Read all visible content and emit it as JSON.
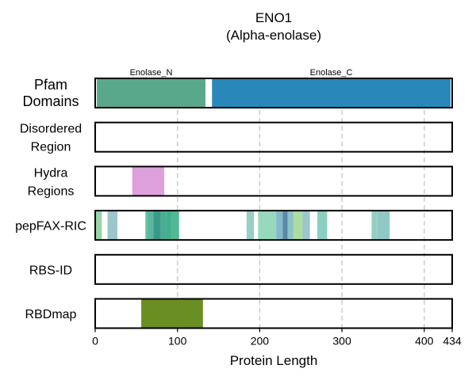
{
  "chart_data": {
    "type": "protein-track",
    "title": "ENO1",
    "subtitle": "(Alpha-enolase)",
    "xlabel": "Protein Length",
    "protein_length": 434,
    "xlim": [
      0,
      434
    ],
    "xticks": [
      0,
      100,
      200,
      300,
      400,
      434
    ],
    "grid_lines": [
      100,
      200,
      300,
      400
    ],
    "tracks": [
      {
        "label_lines": [
          "Pfam",
          "Domains"
        ],
        "features": [
          {
            "label": "Enolase_N",
            "start": 2,
            "end": 134,
            "color": "#5aa88c"
          },
          {
            "label": "Enolase_C",
            "start": 142,
            "end": 432,
            "color": "#2a87b9"
          }
        ]
      },
      {
        "label_lines": [
          "Disordered",
          "Region"
        ],
        "features": []
      },
      {
        "label_lines": [
          "Hydra",
          "Regions"
        ],
        "features": [
          {
            "start": 45,
            "end": 84,
            "color": "#dda0dd"
          }
        ]
      },
      {
        "label_lines": [
          "pepFAX-RIC"
        ],
        "features": [
          {
            "start": 0,
            "end": 8,
            "color": "#98d3aa"
          },
          {
            "start": 15,
            "end": 27,
            "color": "#9ac6cc"
          },
          {
            "start": 61,
            "end": 66,
            "color": "#66c2a5"
          },
          {
            "start": 64,
            "end": 72,
            "color": "#5bb79c"
          },
          {
            "start": 71,
            "end": 80,
            "color": "#3a9a8a"
          },
          {
            "start": 79,
            "end": 86,
            "color": "#4bab93"
          },
          {
            "start": 86,
            "end": 94,
            "color": "#3fb08e"
          },
          {
            "start": 92,
            "end": 102,
            "color": "#52b794"
          },
          {
            "start": 184,
            "end": 193,
            "color": "#98cfc4"
          },
          {
            "start": 198,
            "end": 220,
            "color": "#98d9bd"
          },
          {
            "start": 220,
            "end": 228,
            "color": "#84b9c8"
          },
          {
            "start": 228,
            "end": 234,
            "color": "#5889a8"
          },
          {
            "start": 234,
            "end": 241,
            "color": "#8cc1c6"
          },
          {
            "start": 241,
            "end": 252,
            "color": "#acdca2"
          },
          {
            "start": 252,
            "end": 261,
            "color": "#9ac6cc"
          },
          {
            "start": 270,
            "end": 282,
            "color": "#8ccfc0"
          },
          {
            "start": 336,
            "end": 343,
            "color": "#95cfc4"
          },
          {
            "start": 343,
            "end": 358,
            "color": "#90c9c4"
          }
        ]
      },
      {
        "label_lines": [
          "RBS-ID"
        ],
        "features": []
      },
      {
        "label_lines": [
          "RBDmap"
        ],
        "features": [
          {
            "start": 56,
            "end": 131,
            "color": "#6b8e23"
          }
        ]
      }
    ]
  }
}
